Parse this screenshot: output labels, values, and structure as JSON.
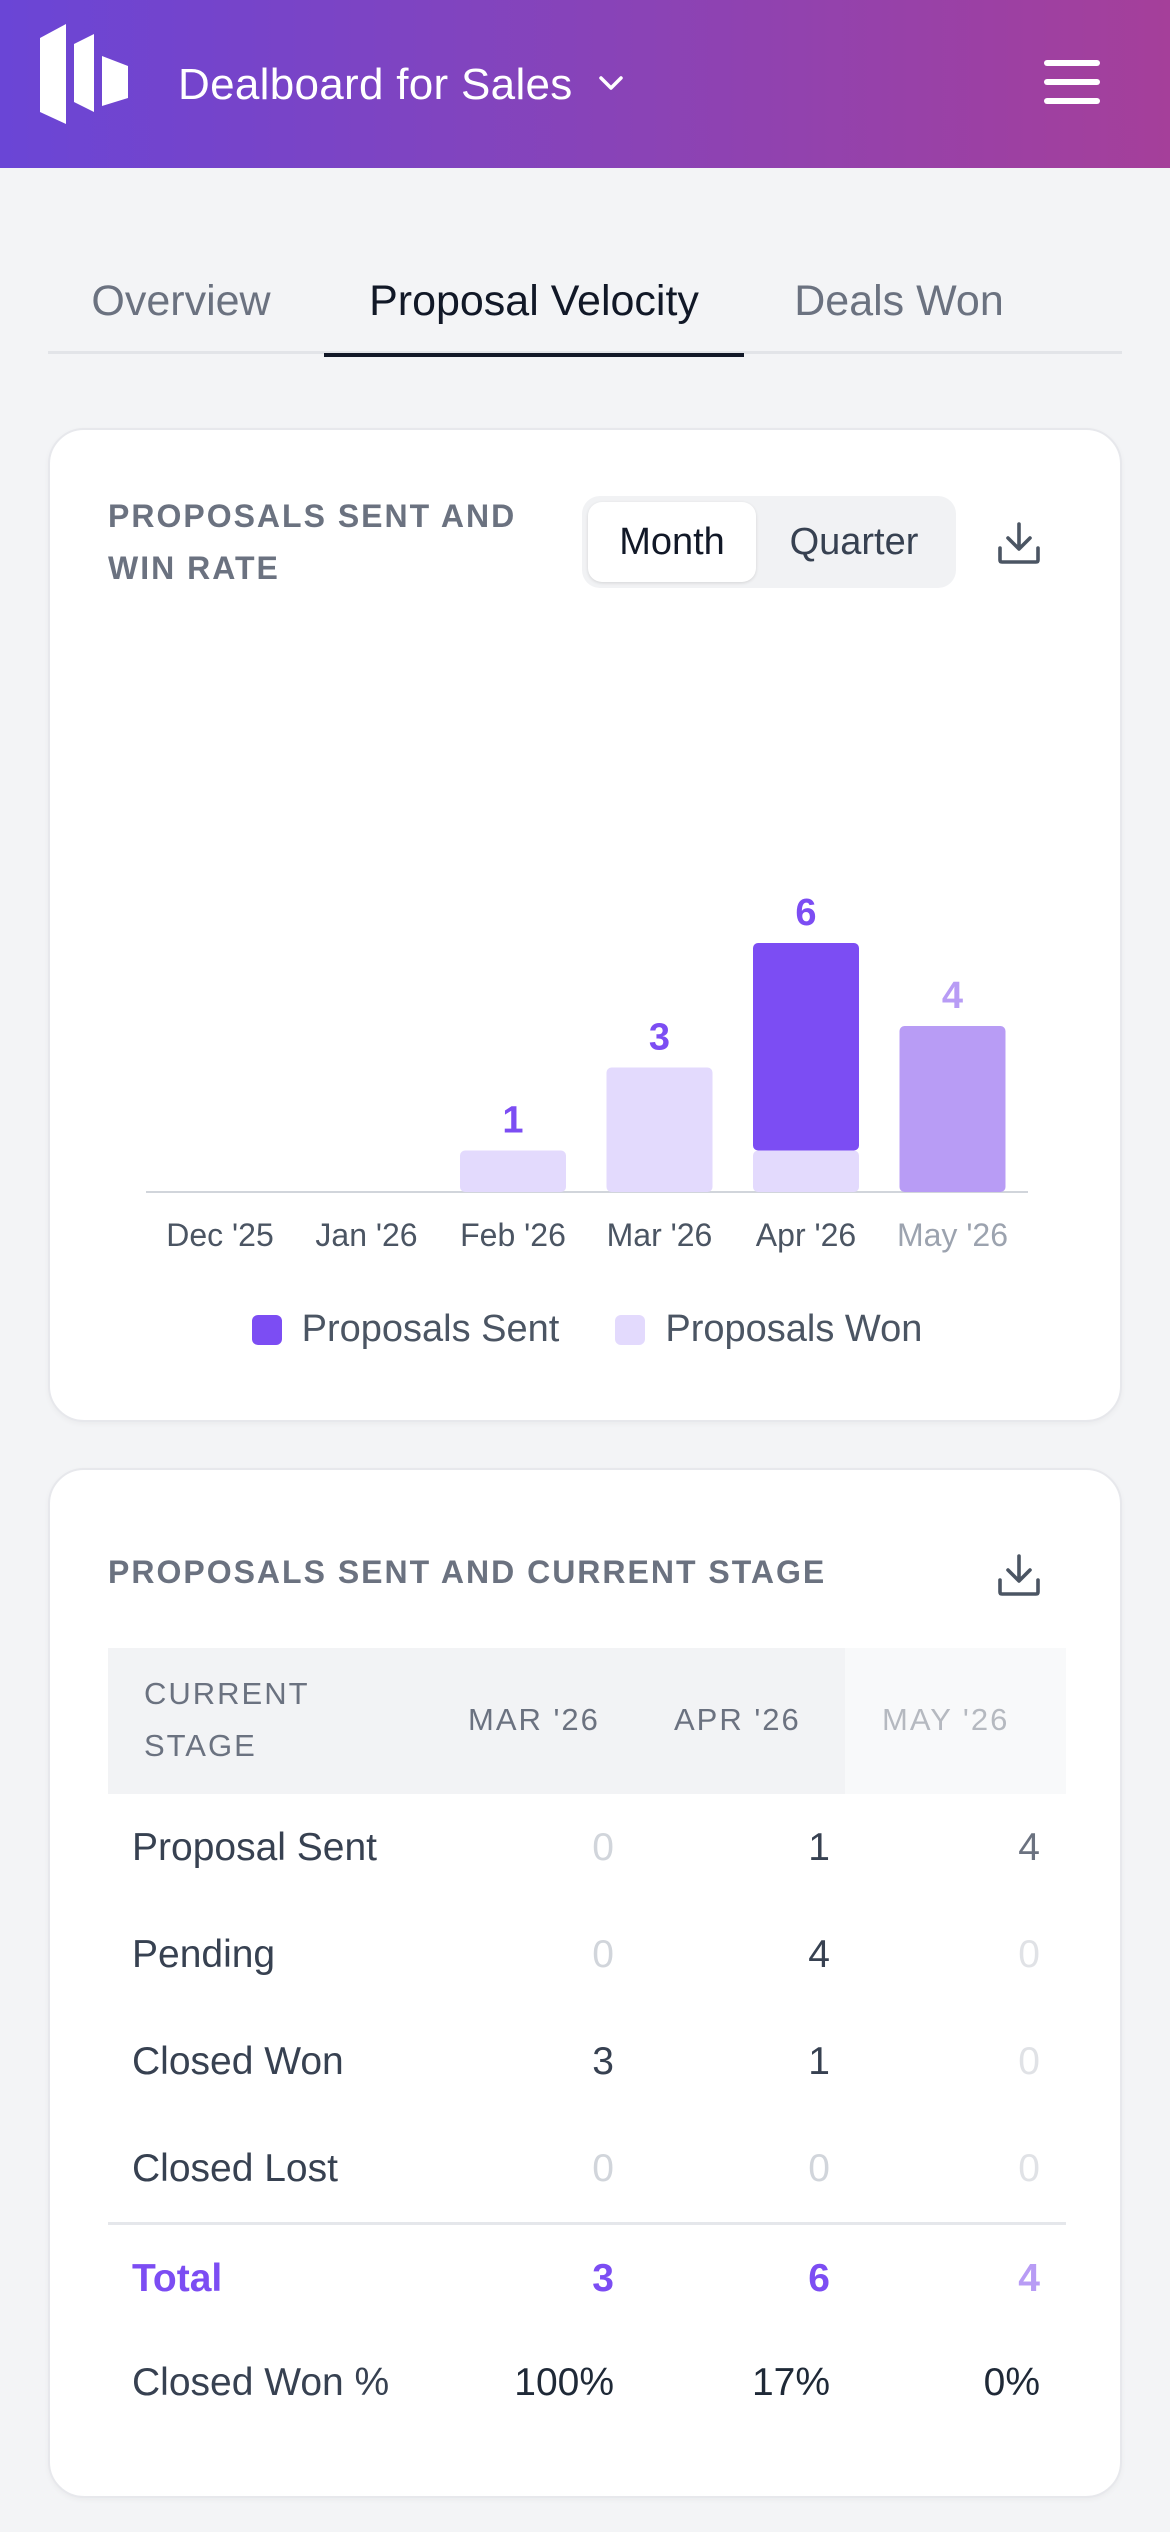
{
  "header": {
    "app_title": "Dealboard for Sales",
    "icons": [
      "logo-icon",
      "chevron-down-icon",
      "hamburger-menu-icon"
    ]
  },
  "tabs": [
    {
      "label": "Overview",
      "active": false
    },
    {
      "label": "Proposal Velocity",
      "active": true
    },
    {
      "label": "Deals Won",
      "active": false
    }
  ],
  "chart_card": {
    "title_line1": "PROPOSALS SENT AND",
    "title_line2": "WIN RATE",
    "toggle": {
      "options": [
        "Month",
        "Quarter"
      ],
      "selected": "Month"
    },
    "download_icon": "download-icon"
  },
  "chart_data": {
    "type": "bar",
    "stacked": true,
    "categories": [
      "Dec '25",
      "Jan '26",
      "Feb '26",
      "Mar '26",
      "Apr '26",
      "May '26"
    ],
    "series": [
      {
        "name": "Proposals Sent",
        "values": [
          0,
          0,
          0,
          0,
          5,
          4
        ],
        "color": "#7c4df3"
      },
      {
        "name": "Proposals Won",
        "values": [
          0,
          0,
          1,
          3,
          1,
          0
        ],
        "color": "#e3dafd"
      }
    ],
    "totals": [
      "",
      "",
      "1",
      "3",
      "6",
      "4"
    ],
    "faded_category": "May '26",
    "legend_position": "bottom",
    "grid": false
  },
  "stage_card": {
    "title": "PROPOSALS SENT AND CURRENT STAGE",
    "download_icon": "download-icon",
    "header": {
      "stage_line1": "CURRENT",
      "stage_line2": "STAGE",
      "col1": "MAR '26",
      "col2": "APR '26",
      "col3": "MAY '26"
    },
    "rows": [
      {
        "label": "Proposal Sent",
        "values": [
          "0",
          "1",
          "4"
        ]
      },
      {
        "label": "Pending",
        "values": [
          "0",
          "4",
          "0"
        ]
      },
      {
        "label": "Closed Won",
        "values": [
          "3",
          "1",
          "0"
        ]
      },
      {
        "label": "Closed Lost",
        "values": [
          "0",
          "0",
          "0"
        ]
      }
    ],
    "total": {
      "label": "Total",
      "values": [
        "3",
        "6",
        "4"
      ]
    },
    "pct": {
      "label": "Closed Won %",
      "values": [
        "100%",
        "17%",
        "0%"
      ]
    }
  },
  "colors": {
    "accent": "#7c4df3",
    "accent_light": "#e3dafd",
    "faded_bar": "#b89cf5",
    "header_gradient_start": "#6a45d6",
    "header_gradient_end": "#a53f9a"
  }
}
